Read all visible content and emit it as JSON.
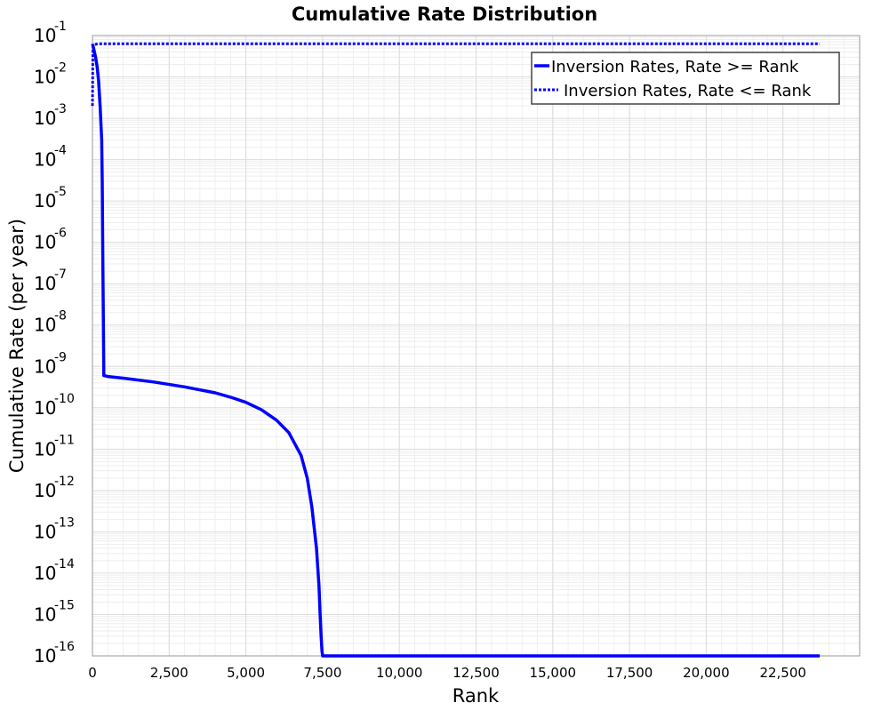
{
  "chart_data": {
    "type": "line",
    "title": "Cumulative Rate Distribution",
    "xlabel": "Rank",
    "ylabel": "Cumulative Rate (per year)",
    "xlim": [
      0,
      25000
    ],
    "ylim": [
      1e-16,
      0.1
    ],
    "yscale": "log",
    "grid": true,
    "legend_position": "top-right",
    "x_ticks": [
      0,
      2500,
      5000,
      7500,
      10000,
      12500,
      15000,
      17500,
      20000,
      22500
    ],
    "x_tick_labels": [
      "0",
      "2,500",
      "5,000",
      "7,500",
      "10,000",
      "12,500",
      "15,000",
      "17,500",
      "20,000",
      "22,500"
    ],
    "y_ticks": [
      {
        "base": "10",
        "exp": "-1"
      },
      {
        "base": "10",
        "exp": "-2"
      },
      {
        "base": "10",
        "exp": "-3"
      },
      {
        "base": "10",
        "exp": "-4"
      },
      {
        "base": "10",
        "exp": "-5"
      },
      {
        "base": "10",
        "exp": "-6"
      },
      {
        "base": "10",
        "exp": "-7"
      },
      {
        "base": "10",
        "exp": "-8"
      },
      {
        "base": "10",
        "exp": "-9"
      },
      {
        "base": "10",
        "exp": "-10"
      },
      {
        "base": "10",
        "exp": "-11"
      },
      {
        "base": "10",
        "exp": "-12"
      },
      {
        "base": "10",
        "exp": "-13"
      },
      {
        "base": "10",
        "exp": "-14"
      },
      {
        "base": "10",
        "exp": "-15"
      },
      {
        "base": "10",
        "exp": "-16"
      }
    ],
    "series": [
      {
        "name": "Inversion Rates, Rate >= Rank",
        "color": "#0000ff",
        "style": "solid",
        "x": [
          0,
          50,
          100,
          150,
          200,
          250,
          300,
          320,
          340,
          370,
          500,
          1000,
          2000,
          3000,
          4000,
          4500,
          5000,
          5500,
          6000,
          6400,
          6800,
          7000,
          7150,
          7300,
          7380,
          7420,
          7450,
          7480,
          7500,
          7520,
          8000,
          12000,
          16000,
          20000,
          23700
        ],
        "y": [
          0.063,
          0.045,
          0.03,
          0.018,
          0.008,
          0.002,
          0.0003,
          3e-05,
          3e-07,
          6e-10,
          5.7e-10,
          5.2e-10,
          4.2e-10,
          3.2e-10,
          2.3e-10,
          1.8e-10,
          1.35e-10,
          9e-11,
          5e-11,
          2.5e-11,
          7e-12,
          2e-12,
          4e-13,
          4e-14,
          5e-15,
          1e-15,
          3e-16,
          1.3e-16,
          1e-16,
          1e-16,
          1e-16,
          1e-16,
          1e-16,
          1e-16,
          1e-16
        ]
      },
      {
        "name": "Inversion Rates, Rate <= Rank",
        "color": "#0000ff",
        "style": "dotted",
        "x": [
          0,
          15,
          40,
          80,
          150,
          250,
          400,
          1000,
          5000,
          10000,
          15000,
          20000,
          23700
        ],
        "y": [
          0.002,
          0.05,
          0.058,
          0.061,
          0.0625,
          0.063,
          0.063,
          0.063,
          0.063,
          0.063,
          0.063,
          0.063,
          0.063
        ]
      }
    ]
  }
}
